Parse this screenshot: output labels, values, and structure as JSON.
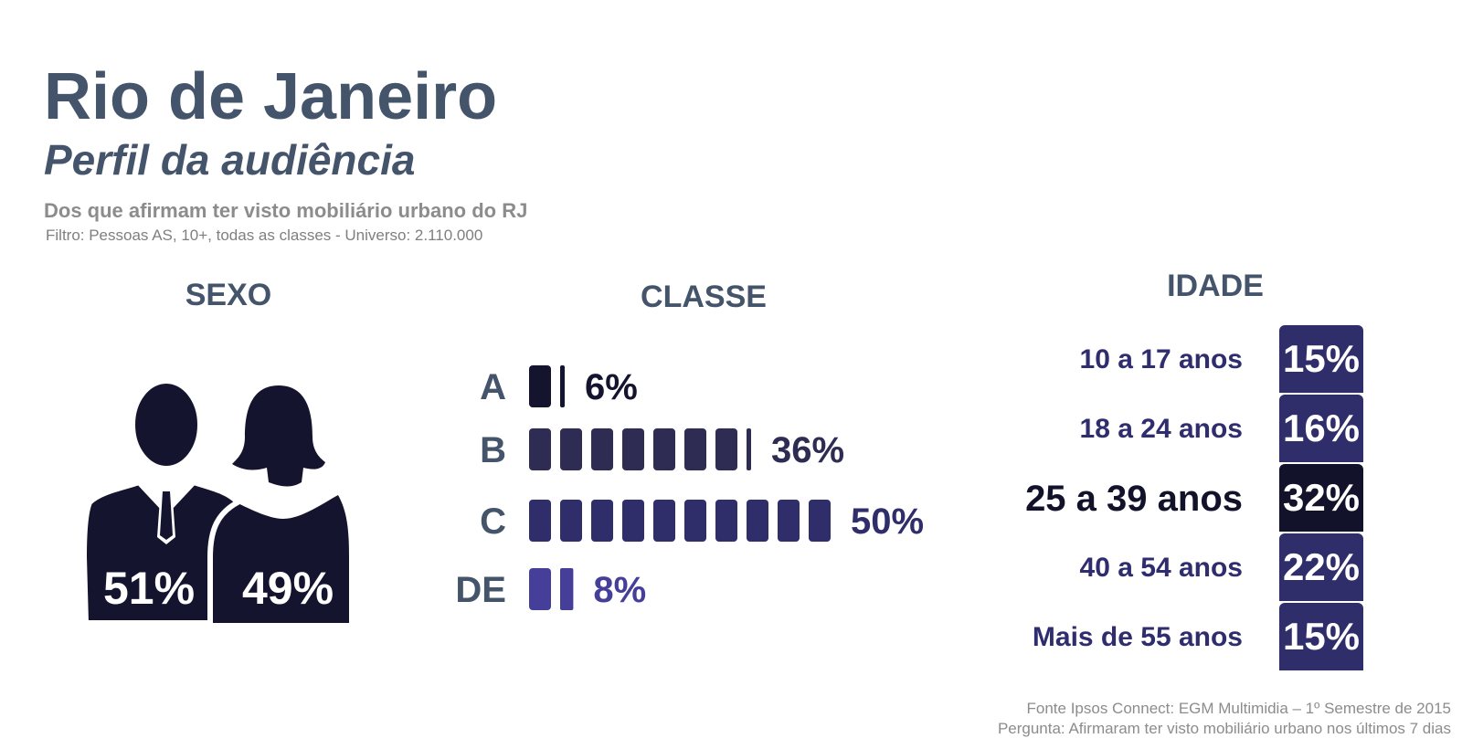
{
  "header": {
    "title": "Rio de Janeiro",
    "subtitle": "Perfil da audiência",
    "description": "Dos que afirmam ter visto mobiliário urbano do RJ",
    "filter": "Filtro: Pessoas AS, 10+, todas as classes - Universo: 2.110.000"
  },
  "chart_data": [
    {
      "type": "pictograph",
      "title": "SEXO",
      "categories": [
        "Masculino",
        "Feminino"
      ],
      "values": [
        51,
        49
      ],
      "labels": [
        "51%",
        "49%"
      ],
      "icons": [
        "male-person-icon",
        "female-person-icon"
      ]
    },
    {
      "type": "bar",
      "title": "CLASSE",
      "categories": [
        "A",
        "B",
        "C",
        "DE"
      ],
      "values": [
        6,
        36,
        50,
        8
      ],
      "labels": [
        "6%",
        "36%",
        "50%",
        "8%"
      ],
      "colors": [
        "#14142e",
        "#2e2c52",
        "#302d6b",
        "#463f9a"
      ],
      "segment_unit": 5
    },
    {
      "type": "table",
      "title": "IDADE",
      "categories": [
        "10 a 17 anos",
        "18 a 24 anos",
        "25 a 39 anos",
        "40 a 54 anos",
        "Mais de 55 anos"
      ],
      "values": [
        15,
        16,
        32,
        22,
        15
      ],
      "labels": [
        "15%",
        "16%",
        "32%",
        "22%",
        "15%"
      ],
      "highlight": "25 a 39 anos"
    }
  ],
  "footer": {
    "source": "Fonte Ipsos Connect: EGM Multimidia – 1º Semestre de 2015",
    "question": "Pergunta: Afirmaram ter visto mobiliário urbano nos últimos 7 dias"
  },
  "colors": {
    "title": "#44546a",
    "dark": "#12122a",
    "navy": "#302d6b"
  }
}
